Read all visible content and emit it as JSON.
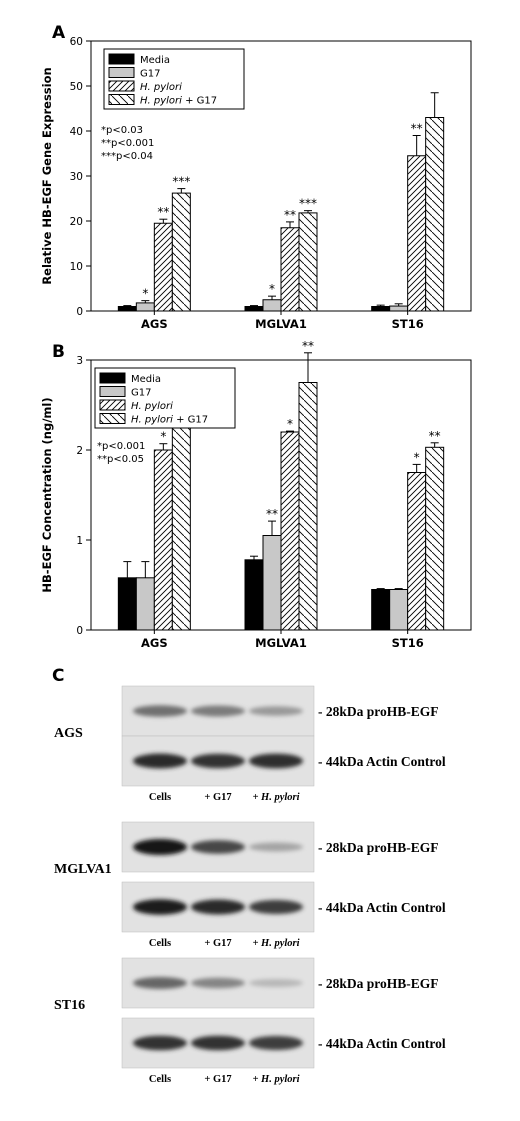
{
  "legend_entries": [
    {
      "text": "Media",
      "italic": ""
    },
    {
      "text": "G17",
      "italic": ""
    },
    {
      "text": "",
      "italic": "H. pylori"
    },
    {
      "text": " + G17",
      "italic": "H. pylori"
    }
  ],
  "chart_data": [
    {
      "type": "bar",
      "panel_label": "A",
      "ylabel": "Relative HB-EGF Gene Expression",
      "ylim": [
        0,
        60
      ],
      "yticks": [
        0,
        10,
        20,
        30,
        40,
        50,
        60
      ],
      "categories": [
        "AGS",
        "MGLVA1",
        "ST16"
      ],
      "series": [
        {
          "name": "Media",
          "values": [
            1,
            1,
            1
          ],
          "errors": [
            0.2,
            0.2,
            0.3
          ],
          "stars": [
            "",
            "",
            ""
          ]
        },
        {
          "name": "G17",
          "values": [
            1.8,
            2.5,
            1.1
          ],
          "errors": [
            0.5,
            0.8,
            0.5
          ],
          "stars": [
            "*",
            "*",
            ""
          ]
        },
        {
          "name": "H. pylori",
          "values": [
            19.5,
            18.5,
            34.5
          ],
          "errors": [
            0.9,
            1.3,
            4.5
          ],
          "stars": [
            "**",
            "**",
            "**"
          ]
        },
        {
          "name": "H. pylori + G17",
          "values": [
            26.2,
            21.8,
            43
          ],
          "errors": [
            1.0,
            0.5,
            5.5
          ],
          "stars": [
            "***",
            "***",
            ""
          ]
        }
      ],
      "annotations": [
        "*p<0.03",
        "**p<0.001",
        "***p<0.04"
      ]
    },
    {
      "type": "bar",
      "panel_label": "B",
      "ylabel": "HB-EGF Concentration (ng/ml)",
      "ylim": [
        0,
        3
      ],
      "yticks": [
        0,
        1,
        2,
        3
      ],
      "categories": [
        "AGS",
        "MGLVA1",
        "ST16"
      ],
      "series": [
        {
          "name": "Media",
          "values": [
            0.58,
            0.78,
            0.45
          ],
          "errors": [
            0.18,
            0.04,
            0.01
          ],
          "stars": [
            "",
            "",
            ""
          ]
        },
        {
          "name": "G17",
          "values": [
            0.58,
            1.05,
            0.45
          ],
          "errors": [
            0.18,
            0.16,
            0.01
          ],
          "stars": [
            "",
            "**",
            ""
          ]
        },
        {
          "name": "H. pylori",
          "values": [
            2.0,
            2.2,
            1.75
          ],
          "errors": [
            0.07,
            0.01,
            0.09
          ],
          "stars": [
            "*",
            "*",
            "*"
          ]
        },
        {
          "name": "H. pylori + G17",
          "values": [
            2.35,
            2.75,
            2.03
          ],
          "errors": [
            0.08,
            0.33,
            0.05
          ],
          "stars": [
            "**",
            "**",
            "**"
          ]
        }
      ],
      "annotations": [
        "*p<0.001",
        "**p<0.05"
      ]
    }
  ],
  "western": {
    "panel_label": "C",
    "lanes": [
      "Cells",
      "+ G17",
      "+ H. pylori"
    ],
    "band_top_label": "- 28kDa proHB-EGF",
    "band_bottom_label": "- 44kDa Actin Control",
    "cell_lines": [
      {
        "name": "AGS",
        "top_intensity": [
          0.55,
          0.5,
          0.35
        ],
        "bottom_intensity": [
          0.9,
          0.85,
          0.88
        ]
      },
      {
        "name": "MGLVA1",
        "top_intensity": [
          1.0,
          0.75,
          0.3
        ],
        "bottom_intensity": [
          0.95,
          0.9,
          0.8
        ]
      },
      {
        "name": "ST16",
        "top_intensity": [
          0.6,
          0.45,
          0.2
        ],
        "bottom_intensity": [
          0.85,
          0.85,
          0.8
        ]
      }
    ]
  }
}
